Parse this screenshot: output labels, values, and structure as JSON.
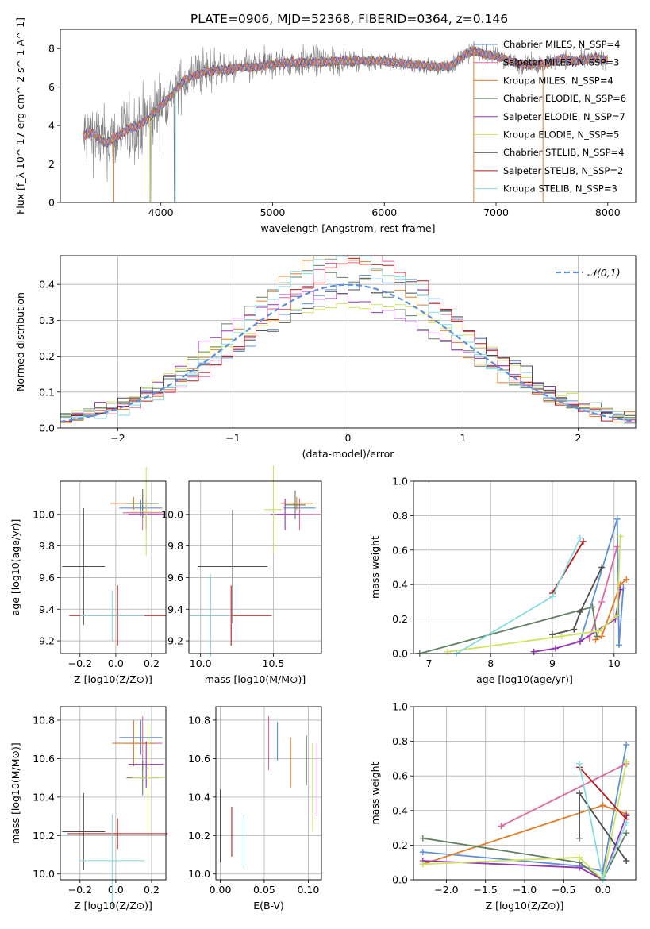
{
  "title": "PLATE=0906, MJD=52368, FIBERID=0364, z=0.146",
  "chart_data": [
    {
      "id": "spectrum",
      "type": "line",
      "xlabel": "wavelength [Angstrom, rest frame]",
      "ylabel": "Flux [f_λ 10^-17 erg cm^-2 s^-1 A^-1]",
      "xlim": [
        3100,
        8250
      ],
      "ylim": [
        0,
        9
      ],
      "xticks": [
        4000,
        5000,
        6000,
        7000,
        8000
      ],
      "yticks": [
        0,
        2,
        4,
        6,
        8
      ],
      "grid": false,
      "legend_position": "top-right",
      "series": [
        {
          "name": "Chabrier MILES, N_SSP=4",
          "color": "#5e8fd8"
        },
        {
          "name": "Salpeter MILES, N_SSP=3",
          "color": "#e0679e"
        },
        {
          "name": "Kroupa MILES, N_SSP=4",
          "color": "#e27d2a"
        },
        {
          "name": "Chabrier ELODIE, N_SSP=6",
          "color": "#607f5f"
        },
        {
          "name": "Salpeter ELODIE, N_SSP=7",
          "color": "#9433b6"
        },
        {
          "name": "Kroupa ELODIE, N_SSP=5",
          "color": "#cfe35e"
        },
        {
          "name": "Chabrier STELIB, N_SSP=4",
          "color": "#4d4d4d"
        },
        {
          "name": "Salpeter STELIB, N_SSP=2",
          "color": "#b51c1c"
        },
        {
          "name": "Kroupa STELIB, N_SSP=3",
          "color": "#86dbe0"
        }
      ],
      "observed_color": "#808080",
      "continuum": {
        "x": [
          3300,
          3400,
          3500,
          3600,
          3700,
          3800,
          3900,
          4000,
          4100,
          4200,
          4300,
          4400,
          4500,
          4600,
          4700,
          4800,
          4900,
          5000,
          5200,
          5400,
          5600,
          5800,
          6000,
          6200,
          6400,
          6500,
          6600,
          6700,
          6800,
          6900,
          7000,
          7100,
          7200,
          7300,
          7400,
          7500,
          7600,
          7700,
          7800,
          7900,
          8000
        ],
        "y": [
          3.5,
          3.6,
          3.1,
          3.4,
          3.8,
          4.0,
          4.4,
          5.0,
          5.6,
          6.3,
          6.6,
          6.8,
          6.9,
          6.9,
          7.0,
          7.0,
          7.1,
          7.2,
          7.3,
          7.3,
          7.35,
          7.35,
          7.35,
          7.2,
          7.1,
          7.05,
          7.1,
          7.6,
          7.9,
          7.7,
          7.6,
          7.4,
          7.2,
          7.15,
          7.2,
          7.3,
          7.5,
          7.35,
          7.4,
          7.5,
          7.4
        ]
      }
    },
    {
      "id": "residuals",
      "type": "line",
      "xlabel": "(data-model)/error",
      "ylabel": "Normed distribution",
      "xlim": [
        -2.5,
        2.5
      ],
      "ylim": [
        0,
        0.48
      ],
      "xticks": [
        -2,
        -1,
        0,
        1,
        2
      ],
      "yticks": [
        0.0,
        0.1,
        0.2,
        0.3,
        0.4
      ],
      "grid": true,
      "legend": "𝒩(0,1)",
      "legend_position": "top-right",
      "gaussian_color": "#5e8fd8",
      "bin_width": 0.1
    },
    {
      "id": "age-vs-Z",
      "type": "scatter",
      "xlabel": "Z [log10(Z/Z⊙)]",
      "ylabel": "age [log10(age/yr)]",
      "xlim": [
        -0.31,
        0.28
      ],
      "ylim": [
        9.12,
        10.21
      ],
      "xticks": [
        -0.2,
        0.0,
        0.2
      ],
      "yticks": [
        9.2,
        9.4,
        9.6,
        9.8,
        10.0
      ],
      "grid": true,
      "points": [
        {
          "x": 0.14,
          "y": 10.04,
          "xerr": 0.12,
          "yerr": 0.05,
          "color": "#5e8fd8"
        },
        {
          "x": 0.15,
          "y": 10.01,
          "xerr": 0.11,
          "yerr": 0.11,
          "color": "#e0679e"
        },
        {
          "x": 0.1,
          "y": 10.07,
          "xerr": 0.13,
          "yerr": 0.04,
          "color": "#e27d2a"
        },
        {
          "x": 0.15,
          "y": 10.07,
          "xerr": 0.09,
          "yerr": 0.09,
          "color": "#607f5f"
        },
        {
          "x": 0.17,
          "y": 10.0,
          "xerr": 0.1,
          "yerr": 0.09,
          "color": "#9433b6"
        },
        {
          "x": 0.17,
          "y": 10.02,
          "xerr": 0.09,
          "yerr": 0.28,
          "color": "#cfe35e"
        },
        {
          "x": -0.18,
          "y": 9.67,
          "xerr": 0.12,
          "yerr": 0.37,
          "color": "#4d4d4d"
        },
        {
          "x": 0.01,
          "y": 9.36,
          "xerr": 0.27,
          "yerr": 0.19,
          "color": "#b51c1c"
        },
        {
          "x": -0.02,
          "y": 9.36,
          "xerr": 0.18,
          "yerr": 0.16,
          "color": "#86dbe0"
        }
      ]
    },
    {
      "id": "age-vs-mass",
      "type": "scatter",
      "xlabel": "mass [log10(M/M⊙)]",
      "ylabel": "",
      "xlim": [
        9.92,
        10.83
      ],
      "ylim": [
        9.12,
        10.21
      ],
      "xticks": [
        10.0,
        10.5
      ],
      "yticks": [
        9.2,
        9.4,
        9.6,
        9.8,
        10.0
      ],
      "grid": true,
      "points": [
        {
          "x": 10.68,
          "y": 10.04,
          "xerr": 0.11,
          "yerr": 0.05,
          "color": "#5e8fd8"
        },
        {
          "x": 10.68,
          "y": 10.0,
          "xerr": 0.14,
          "yerr": 0.1,
          "color": "#e0679e"
        },
        {
          "x": 10.66,
          "y": 10.07,
          "xerr": 0.11,
          "yerr": 0.04,
          "color": "#e27d2a"
        },
        {
          "x": 10.65,
          "y": 10.06,
          "xerr": 0.07,
          "yerr": 0.09,
          "color": "#607f5f"
        },
        {
          "x": 10.58,
          "y": 10.0,
          "xerr": 0.1,
          "yerr": 0.1,
          "color": "#9433b6"
        },
        {
          "x": 10.5,
          "y": 10.03,
          "xerr": 0.06,
          "yerr": 0.28,
          "color": "#cfe35e"
        },
        {
          "x": 10.22,
          "y": 9.67,
          "xerr": 0.24,
          "yerr": 0.36,
          "color": "#4d4d4d"
        },
        {
          "x": 10.21,
          "y": 9.36,
          "xerr": 0.28,
          "yerr": 0.19,
          "color": "#b51c1c"
        },
        {
          "x": 10.07,
          "y": 9.36,
          "xerr": 0.14,
          "yerr": 0.26,
          "color": "#86dbe0"
        }
      ]
    },
    {
      "id": "weight-vs-age",
      "type": "line",
      "xlabel": "age [log10(age/yr)]",
      "ylabel": "mass weight",
      "xlim": [
        6.75,
        10.35
      ],
      "ylim": [
        0,
        1.0
      ],
      "xticks": [
        7,
        8,
        9,
        10
      ],
      "yticks": [
        0.0,
        0.2,
        0.4,
        0.6,
        0.8,
        1.0
      ],
      "grid": true,
      "series": [
        {
          "color": "#5e8fd8",
          "x": [
            9.45,
            10.05,
            10.08,
            10.15
          ],
          "y": [
            0.07,
            0.78,
            0.05,
            0.38
          ]
        },
        {
          "color": "#e0679e",
          "x": [
            9.6,
            9.8,
            10.05
          ],
          "y": [
            0.09,
            0.3,
            0.62
          ]
        },
        {
          "color": "#e27d2a",
          "x": [
            9.7,
            9.8,
            10.1,
            10.2
          ],
          "y": [
            0.08,
            0.1,
            0.4,
            0.43
          ]
        },
        {
          "color": "#607f5f",
          "x": [
            6.85,
            9.65,
            9.72
          ],
          "y": [
            0.0,
            0.27,
            0.1
          ]
        },
        {
          "color": "#9433b6",
          "x": [
            8.7,
            9.05,
            9.45,
            10.02,
            10.1
          ],
          "y": [
            0.01,
            0.03,
            0.07,
            0.2,
            0.37
          ]
        },
        {
          "color": "#cfe35e",
          "x": [
            7.3,
            9.15,
            9.75,
            10.05,
            10.1
          ],
          "y": [
            0.01,
            0.1,
            0.13,
            0.22,
            0.68
          ]
        },
        {
          "color": "#4d4d4d",
          "x": [
            9.0,
            9.35,
            9.45,
            9.8
          ],
          "y": [
            0.11,
            0.14,
            0.24,
            0.5
          ]
        },
        {
          "color": "#b51c1c",
          "x": [
            9.0,
            9.5
          ],
          "y": [
            0.35,
            0.65
          ]
        },
        {
          "color": "#86dbe0",
          "x": [
            7.45,
            9.0,
            9.45
          ],
          "y": [
            0.0,
            0.33,
            0.67
          ]
        }
      ]
    },
    {
      "id": "mass-vs-Z",
      "type": "scatter",
      "xlabel": "Z [log10(Z/Z⊙)]",
      "ylabel": "mass [log10(M/M⊙)]",
      "xlim": [
        -0.31,
        0.28
      ],
      "ylim": [
        9.97,
        10.87
      ],
      "xticks": [
        -0.2,
        0.0,
        0.2
      ],
      "yticks": [
        10.0,
        10.2,
        10.4,
        10.6,
        10.8
      ],
      "grid": true,
      "points": [
        {
          "x": 0.14,
          "y": 10.71,
          "xerr": 0.12,
          "yerr": 0.09,
          "color": "#5e8fd8"
        },
        {
          "x": 0.15,
          "y": 10.68,
          "xerr": 0.11,
          "yerr": 0.14,
          "color": "#e0679e"
        },
        {
          "x": 0.1,
          "y": 10.68,
          "xerr": 0.12,
          "yerr": 0.12,
          "color": "#e27d2a"
        },
        {
          "x": 0.15,
          "y": 10.5,
          "xerr": 0.09,
          "yerr": 0.09,
          "color": "#607f5f"
        },
        {
          "x": 0.17,
          "y": 10.57,
          "xerr": 0.1,
          "yerr": 0.12,
          "color": "#9433b6"
        },
        {
          "x": 0.18,
          "y": 10.5,
          "xerr": 0.09,
          "yerr": 0.28,
          "color": "#cfe35e"
        },
        {
          "x": -0.18,
          "y": 10.22,
          "xerr": 0.12,
          "yerr": 0.2,
          "color": "#4d4d4d"
        },
        {
          "x": 0.01,
          "y": 10.21,
          "xerr": 0.28,
          "yerr": 0.08,
          "color": "#b51c1c"
        },
        {
          "x": -0.02,
          "y": 10.07,
          "xerr": 0.18,
          "yerr": 0.24,
          "color": "#86dbe0"
        }
      ]
    },
    {
      "id": "mass-vs-ebv",
      "type": "scatter",
      "xlabel": "E(B-V)",
      "ylabel": "",
      "xlim": [
        -0.005,
        0.115
      ],
      "ylim": [
        9.97,
        10.87
      ],
      "xticks": [
        0.0,
        0.05,
        0.1
      ],
      "yticks": [
        10.0,
        10.2,
        10.4,
        10.6,
        10.8
      ],
      "grid": true,
      "points": [
        {
          "x": 0.065,
          "y": 10.69,
          "yerr": 0.1,
          "color": "#5e8fd8"
        },
        {
          "x": 0.055,
          "y": 10.68,
          "yerr": 0.14,
          "color": "#e0679e"
        },
        {
          "x": 0.08,
          "y": 10.58,
          "yerr": 0.13,
          "color": "#e27d2a"
        },
        {
          "x": 0.098,
          "y": 10.59,
          "yerr": 0.13,
          "color": "#607f5f"
        },
        {
          "x": 0.11,
          "y": 10.49,
          "yerr": 0.19,
          "color": "#9433b6"
        },
        {
          "x": 0.105,
          "y": 10.45,
          "yerr": 0.23,
          "color": "#cfe35e"
        },
        {
          "x": 0.0,
          "y": 10.25,
          "yerr": 0.19,
          "color": "#4d4d4d"
        },
        {
          "x": 0.013,
          "y": 10.22,
          "yerr": 0.13,
          "color": "#b51c1c"
        },
        {
          "x": 0.027,
          "y": 10.17,
          "yerr": 0.14,
          "color": "#86dbe0"
        }
      ]
    },
    {
      "id": "weight-vs-Z",
      "type": "line",
      "xlabel": "Z [log10(Z/Z⊙)]",
      "ylabel": "mass weight",
      "xlim": [
        -2.42,
        0.42
      ],
      "ylim": [
        0,
        1.0
      ],
      "xticks": [
        -2.0,
        -1.5,
        -1.0,
        -0.5,
        0.0
      ],
      "yticks": [
        0.0,
        0.2,
        0.4,
        0.6,
        0.8,
        1.0
      ],
      "grid": true,
      "series": [
        {
          "color": "#5e8fd8",
          "x": [
            -2.3,
            -0.3,
            0.0,
            0.3
          ],
          "y": [
            0.16,
            0.08,
            0.05,
            0.78
          ]
        },
        {
          "color": "#e0679e",
          "x": [
            -1.3,
            0.3
          ],
          "y": [
            0.31,
            0.67
          ]
        },
        {
          "color": "#e27d2a",
          "x": [
            -2.3,
            0.0,
            0.3
          ],
          "y": [
            0.09,
            0.43,
            0.38
          ]
        },
        {
          "color": "#607f5f",
          "x": [
            -2.3,
            -0.3,
            0.0,
            0.3
          ],
          "y": [
            0.24,
            0.1,
            0.0,
            0.27
          ]
        },
        {
          "color": "#9433b6",
          "x": [
            -2.3,
            -0.3,
            0.0,
            0.3
          ],
          "y": [
            0.11,
            0.07,
            0.0,
            0.37
          ]
        },
        {
          "color": "#cfe35e",
          "x": [
            -2.3,
            -0.3,
            0.0,
            0.3
          ],
          "y": [
            0.09,
            0.13,
            0.0,
            0.68
          ]
        },
        {
          "color": "#4d4d4d",
          "x": [
            -0.3,
            -0.3,
            0.3
          ],
          "y": [
            0.24,
            0.5,
            0.11
          ]
        },
        {
          "color": "#b51c1c",
          "x": [
            -0.3,
            0.3
          ],
          "y": [
            0.65,
            0.35
          ]
        },
        {
          "color": "#86dbe0",
          "x": [
            -0.3,
            0.0,
            0.3
          ],
          "y": [
            0.67,
            0.0,
            0.33
          ]
        }
      ]
    }
  ]
}
